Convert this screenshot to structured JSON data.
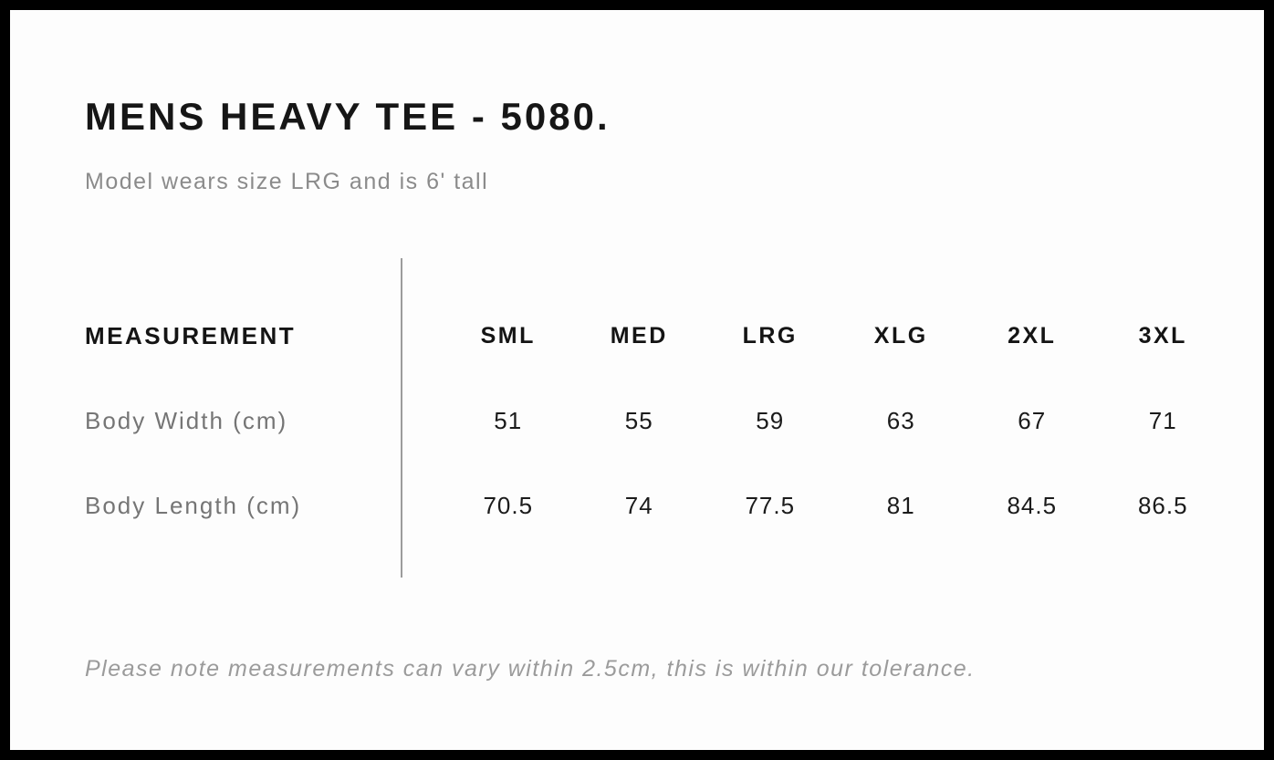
{
  "page": {
    "title": "MENS HEAVY TEE - 5080.",
    "subtitle": "Model wears size LRG and is 6' tall",
    "note": "Please note measurements can vary within 2.5cm, this is within our tolerance."
  },
  "size_chart": {
    "header_label": "MEASUREMENT",
    "sizes": [
      "SML",
      "MED",
      "LRG",
      "XLG",
      "2XL",
      "3XL"
    ],
    "rows": [
      {
        "label": "Body Width (cm)",
        "values": [
          "51",
          "55",
          "59",
          "63",
          "67",
          "71"
        ]
      },
      {
        "label": "Body Length (cm)",
        "values": [
          "70.5",
          "74",
          "77.5",
          "81",
          "84.5",
          "86.5"
        ]
      }
    ]
  },
  "colors": {
    "frame": "#000000",
    "background": "#fdfdfd",
    "heading_text": "#161616",
    "muted_text": "#8b8b8b",
    "note_text": "#9b9b9b",
    "divider": "#9c9c9c"
  }
}
